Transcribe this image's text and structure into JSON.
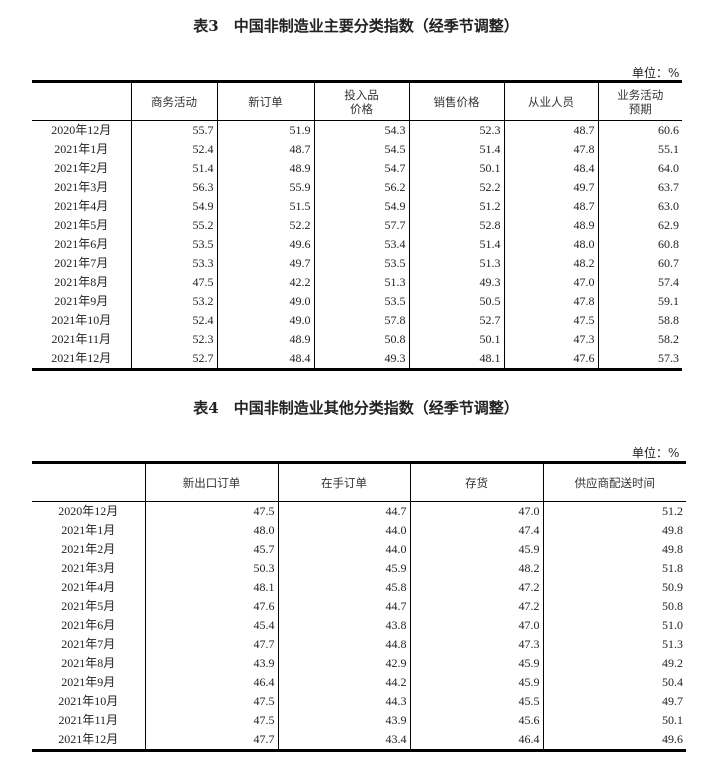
{
  "table3": {
    "title": "表3　中国非制造业主要分类指数（经季节调整）",
    "unit": "单位：%",
    "headers": [
      "",
      "商务活动",
      "新订单",
      "投入品\n价格",
      "销售价格",
      "从业人员",
      "业务活动\n预期"
    ],
    "rows": [
      [
        "2020年12月",
        "55.7",
        "51.9",
        "54.3",
        "52.3",
        "48.7",
        "60.6"
      ],
      [
        "2021年1月",
        "52.4",
        "48.7",
        "54.5",
        "51.4",
        "47.8",
        "55.1"
      ],
      [
        "2021年2月",
        "51.4",
        "48.9",
        "54.7",
        "50.1",
        "48.4",
        "64.0"
      ],
      [
        "2021年3月",
        "56.3",
        "55.9",
        "56.2",
        "52.2",
        "49.7",
        "63.7"
      ],
      [
        "2021年4月",
        "54.9",
        "51.5",
        "54.9",
        "51.2",
        "48.7",
        "63.0"
      ],
      [
        "2021年5月",
        "55.2",
        "52.2",
        "57.7",
        "52.8",
        "48.9",
        "62.9"
      ],
      [
        "2021年6月",
        "53.5",
        "49.6",
        "53.4",
        "51.4",
        "48.0",
        "60.8"
      ],
      [
        "2021年7月",
        "53.3",
        "49.7",
        "53.5",
        "51.3",
        "48.2",
        "60.7"
      ],
      [
        "2021年8月",
        "47.5",
        "42.2",
        "51.3",
        "49.3",
        "47.0",
        "57.4"
      ],
      [
        "2021年9月",
        "53.2",
        "49.0",
        "53.5",
        "50.5",
        "47.8",
        "59.1"
      ],
      [
        "2021年10月",
        "52.4",
        "49.0",
        "57.8",
        "52.7",
        "47.5",
        "58.8"
      ],
      [
        "2021年11月",
        "52.3",
        "48.9",
        "50.8",
        "50.1",
        "47.3",
        "58.2"
      ],
      [
        "2021年12月",
        "52.7",
        "48.4",
        "49.3",
        "48.1",
        "47.6",
        "57.3"
      ]
    ]
  },
  "table4": {
    "title": "表4　中国非制造业其他分类指数（经季节调整）",
    "unit": "单位：%",
    "headers": [
      "",
      "新出口订单",
      "在手订单",
      "存货",
      "供应商配送时间"
    ],
    "rows": [
      [
        "2020年12月",
        "47.5",
        "44.7",
        "47.0",
        "51.2"
      ],
      [
        "2021年1月",
        "48.0",
        "44.0",
        "47.4",
        "49.8"
      ],
      [
        "2021年2月",
        "45.7",
        "44.0",
        "45.9",
        "49.8"
      ],
      [
        "2021年3月",
        "50.3",
        "45.9",
        "48.2",
        "51.8"
      ],
      [
        "2021年4月",
        "48.1",
        "45.8",
        "47.2",
        "50.9"
      ],
      [
        "2021年5月",
        "47.6",
        "44.7",
        "47.2",
        "50.8"
      ],
      [
        "2021年6月",
        "45.4",
        "43.8",
        "47.0",
        "51.0"
      ],
      [
        "2021年7月",
        "47.7",
        "44.8",
        "47.3",
        "51.3"
      ],
      [
        "2021年8月",
        "43.9",
        "42.9",
        "45.9",
        "49.2"
      ],
      [
        "2021年9月",
        "46.4",
        "44.2",
        "45.9",
        "50.4"
      ],
      [
        "2021年10月",
        "47.5",
        "44.3",
        "45.5",
        "49.7"
      ],
      [
        "2021年11月",
        "47.5",
        "43.9",
        "45.6",
        "50.1"
      ],
      [
        "2021年12月",
        "47.7",
        "43.4",
        "46.4",
        "49.6"
      ]
    ]
  }
}
